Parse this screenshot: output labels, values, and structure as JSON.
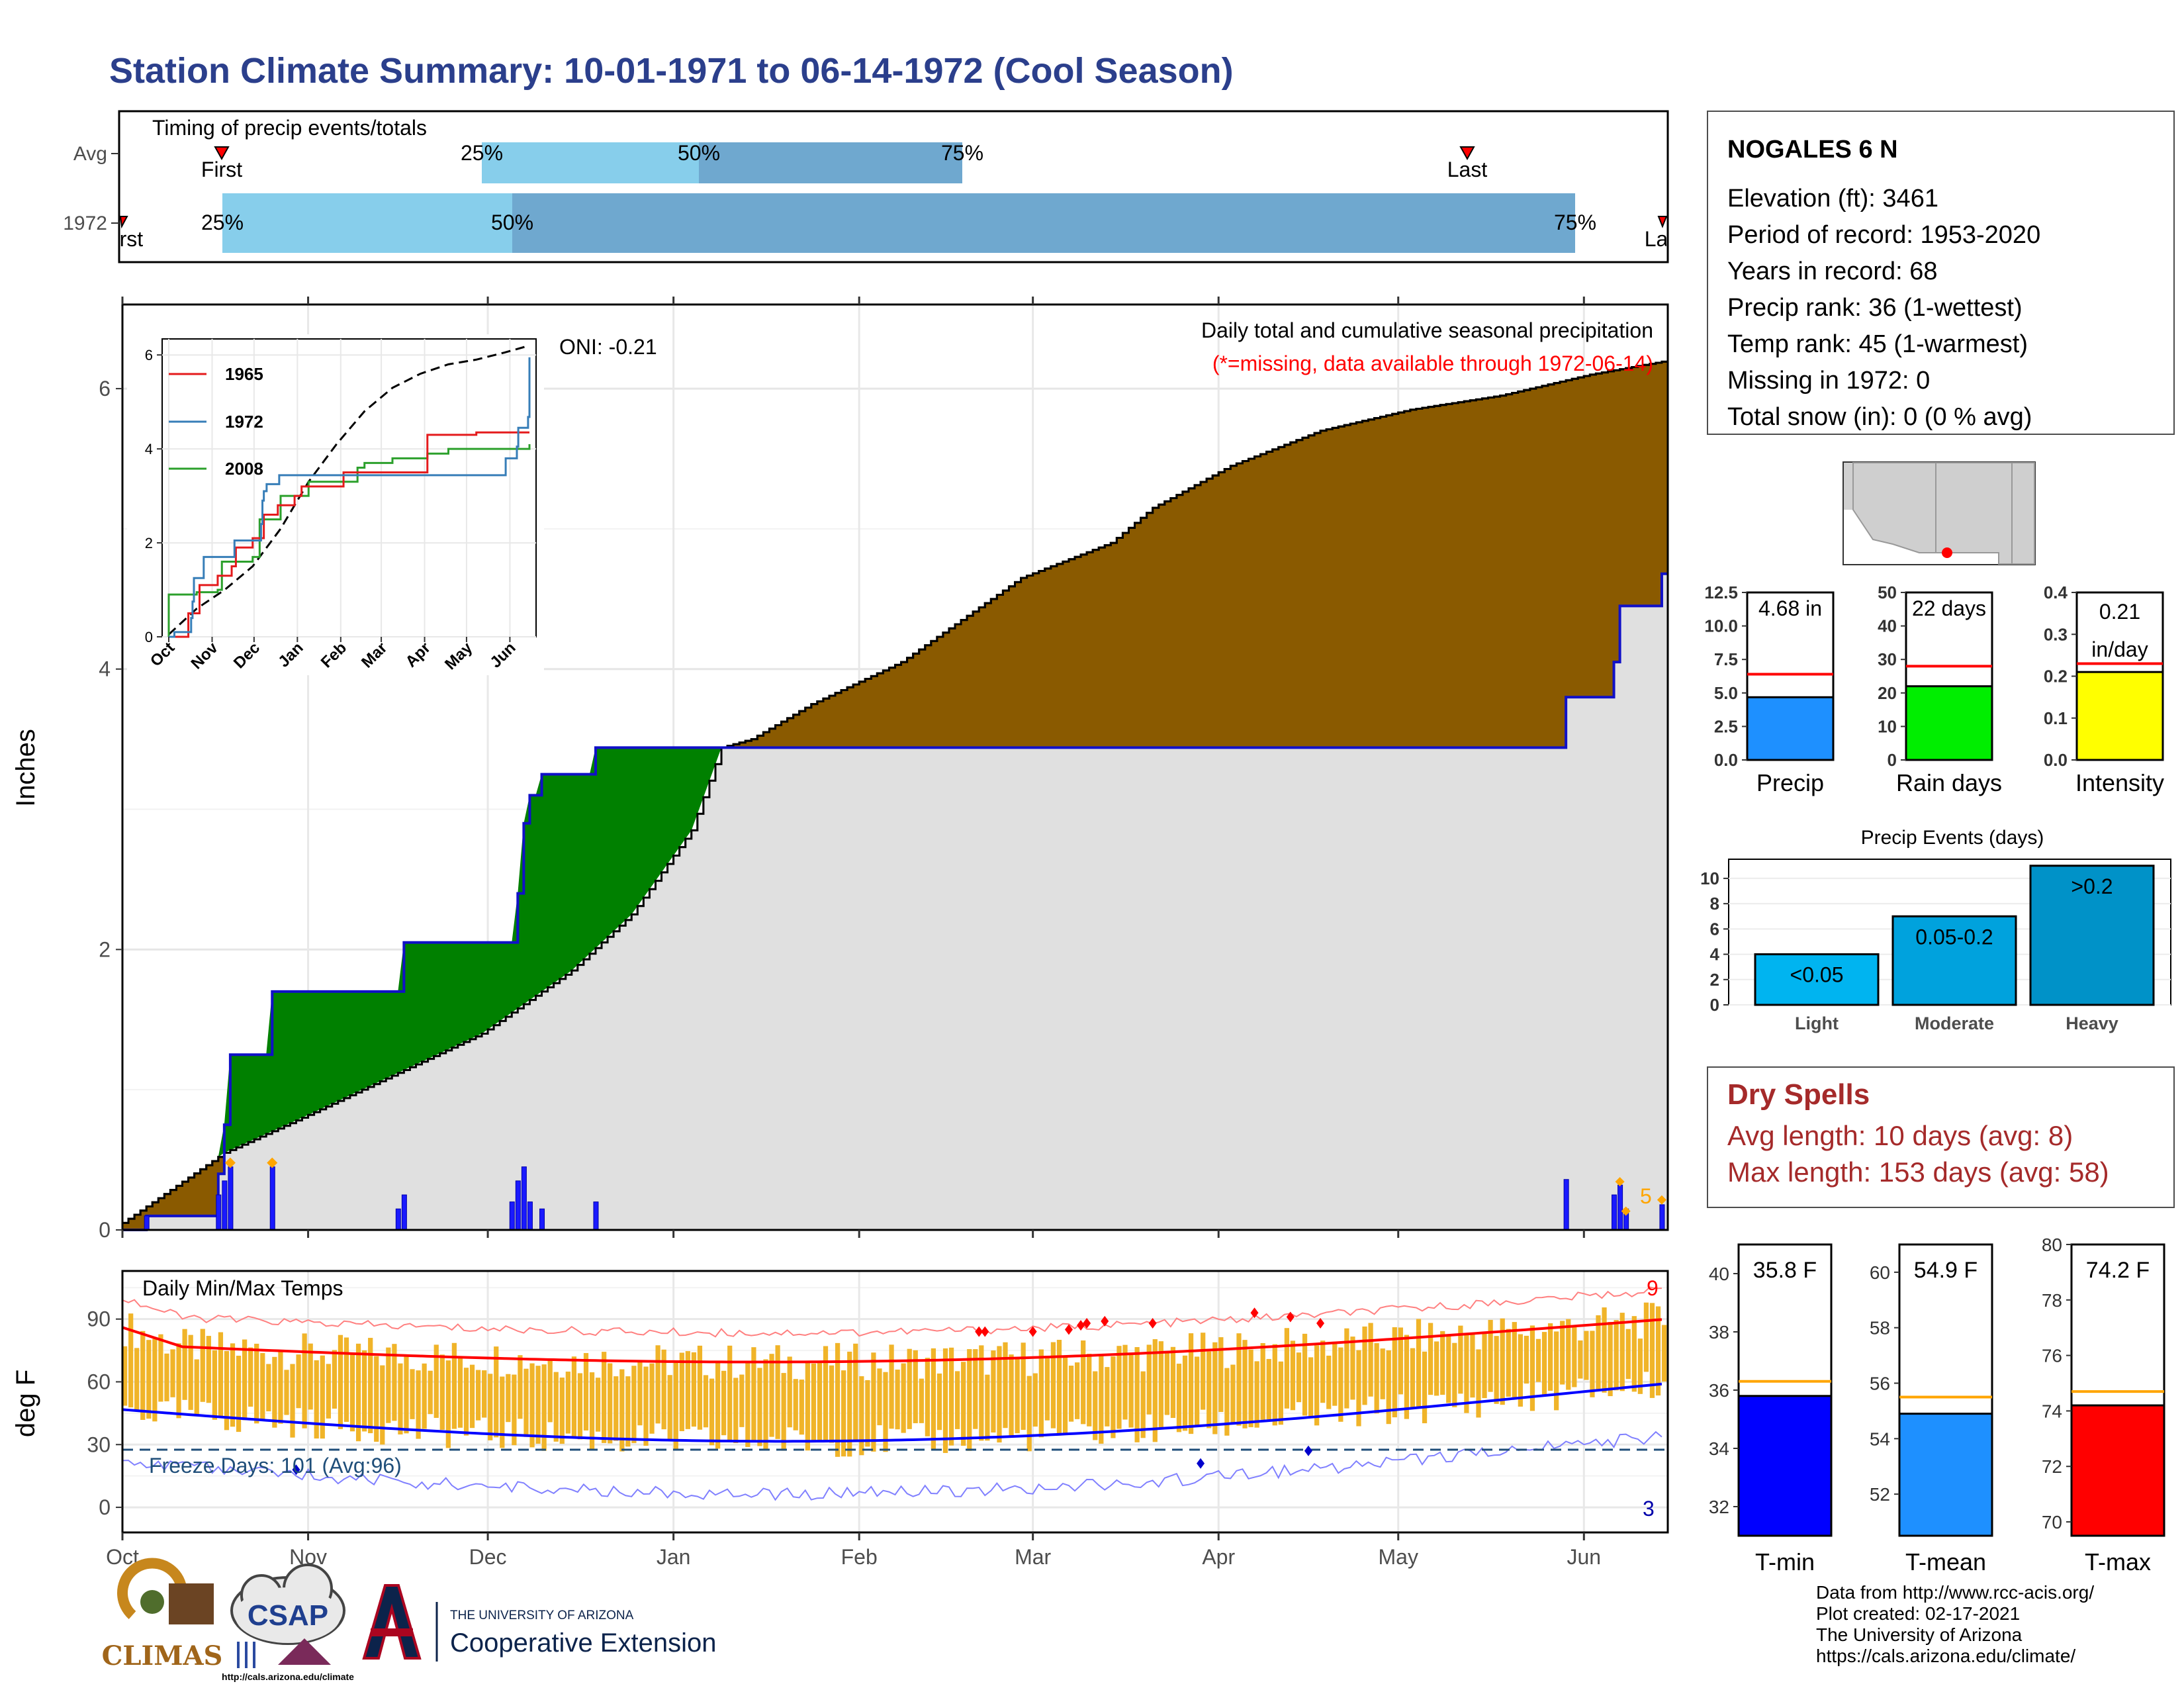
{
  "title": "Station Climate Summary: 10-01-1971 to 06-14-1972 (Cool Season)",
  "colors": {
    "title": "#2b3f8c",
    "brown": "#8a5a00",
    "green": "#008000",
    "gray_fill": "#e0e0e0",
    "blue_line": "#1010c8",
    "bar_blue": "#1a1aff",
    "orange": "#ffa500",
    "light_blue": "#87ceeb",
    "mid_blue": "#6fa8cf",
    "temp_bar": "#f0b429",
    "red": "#ff0000",
    "dry_red": "#a52a2a",
    "freeze_dash": "#1f4e79"
  },
  "timing": {
    "title": "Timing of precip events/totals",
    "rows": [
      {
        "label": "Avg",
        "first_label": "First",
        "last_label": "Last",
        "p25": "25%",
        "p50": "50%",
        "p75": "75%"
      },
      {
        "label": "1972",
        "first_label": "First",
        "last_label": "Last",
        "p25": "25%",
        "p50": "50%",
        "p75": "75%"
      }
    ]
  },
  "station": {
    "name": "NOGALES 6 N",
    "lines": [
      "Elevation (ft): 3461",
      "Period of record: 1953-2020",
      "Years in record: 68",
      "Precip rank: 36 (1-wettest)",
      "Temp rank: 45 (1-warmest)",
      "Missing in 1972: 0",
      "Total snow (in): 0 (0 % avg)"
    ]
  },
  "precip_panel": {
    "ylabel": "Inches",
    "title": "Daily total and cumulative seasonal precipitation",
    "subtitle": "(*=missing, data available through 1972-06-14)",
    "oni": "ONI: -0.21",
    "corner_count": "5",
    "months": [
      "Oct",
      "Nov",
      "Dec",
      "Jan",
      "Feb",
      "Mar",
      "Apr",
      "May",
      "Jun"
    ],
    "yticks": [
      "0",
      "2",
      "4",
      "6"
    ]
  },
  "inset": {
    "legend": [
      "1965",
      "1972",
      "2008"
    ],
    "yticks": [
      "0",
      "2",
      "4",
      "6"
    ],
    "months": [
      "Oct",
      "Nov",
      "Dec",
      "Jan",
      "Feb",
      "Mar",
      "Apr",
      "May",
      "Jun"
    ]
  },
  "summary_bars": [
    {
      "label": "Precip",
      "value_text": "4.68 in",
      "value": 4.68,
      "avg": 6.4,
      "max": 12.5,
      "yticks": [
        "0.0",
        "2.5",
        "5.0",
        "7.5",
        "10.0",
        "12.5"
      ],
      "color": "#1e90ff"
    },
    {
      "label": "Rain days",
      "value_text": "22 days",
      "value": 22,
      "avg": 28,
      "max": 50,
      "yticks": [
        "0",
        "10",
        "20",
        "30",
        "40",
        "50"
      ],
      "color": "#00ee00"
    },
    {
      "label": "Intensity",
      "value_text": "0.21 in/day",
      "value_line1": "0.21",
      "value_line2": "in/day",
      "value": 0.21,
      "avg": 0.23,
      "max": 0.4,
      "yticks": [
        "0.0",
        "0.1",
        "0.2",
        "0.3",
        "0.4"
      ],
      "color": "#ffff00"
    }
  ],
  "events": {
    "title": "Precip Events (days)",
    "yticks": [
      "0",
      "2",
      "4",
      "6",
      "8",
      "10"
    ],
    "bars": [
      {
        "cat": "Light",
        "label": "<0.05",
        "value": 4,
        "color": "#00b4f0"
      },
      {
        "cat": "Moderate",
        "label": "0.05-0.2",
        "value": 7,
        "color": "#00a2dd"
      },
      {
        "cat": "Heavy",
        "label": ">0.2",
        "value": 11,
        "color": "#0092c8"
      }
    ]
  },
  "dry_spells": {
    "title": "Dry Spells",
    "avg_line": "Avg length: 10 days (avg: 8)",
    "max_line": "Max length: 153 days (avg: 58)"
  },
  "temp_panel": {
    "ylabel": "deg F",
    "title": "Daily Min/Max Temps",
    "freeze": "Freeze Days: 101 (Avg:96)",
    "count_hot": "9",
    "count_cold": "3",
    "yticks": [
      "0",
      "30",
      "60",
      "90"
    ]
  },
  "temp_bars": [
    {
      "label": "T-min",
      "value_text": "35.8 F",
      "value": 35.8,
      "avg": 36.3,
      "min": 31,
      "max": 41,
      "yticks": [
        "32",
        "34",
        "36",
        "38",
        "40"
      ],
      "color": "#0000ff"
    },
    {
      "label": "T-mean",
      "value_text": "54.9 F",
      "value": 54.9,
      "avg": 55.5,
      "min": 50.5,
      "max": 61,
      "yticks": [
        "52",
        "54",
        "56",
        "58",
        "60"
      ],
      "color": "#1e90ff"
    },
    {
      "label": "T-max",
      "value_text": "74.2 F",
      "value": 74.2,
      "avg": 74.7,
      "min": 69.5,
      "max": 80,
      "yticks": [
        "70",
        "72",
        "74",
        "76",
        "78",
        "80"
      ],
      "color": "#ff0000"
    }
  ],
  "footer": {
    "credits": [
      "Data from http://www.rcc-acis.org/",
      "Plot created: 02-17-2021",
      "The University of Arizona",
      "https://cals.arizona.edu/climate/"
    ],
    "climas": "CLIMAS",
    "csap": "CSAP",
    "csap_url": "http://cals.arizona.edu/climate",
    "ua_small": "THE UNIVERSITY OF ARIZONA",
    "ua_big": "Cooperative Extension"
  },
  "chart_data": {
    "type": "area",
    "title": "Daily total and cumulative seasonal precipitation",
    "ylabel": "Inches",
    "ylim": [
      0,
      6.6
    ],
    "x": [
      "1971-10-01",
      "1971-10-18",
      "1971-10-28",
      "1971-11-18",
      "1971-12-08",
      "1971-12-15",
      "1971-12-26",
      "1972-01-09",
      "1972-03-15",
      "1972-05-30",
      "1972-06-07",
      "1972-06-14"
    ],
    "series": [
      {
        "name": "1972",
        "values": [
          0.0,
          0.4,
          1.7,
          2.05,
          2.5,
          3.25,
          3.44,
          3.44,
          3.44,
          3.8,
          4.45,
          4.68
        ]
      },
      {
        "values": [
          0.05,
          0.55,
          0.95,
          1.4,
          1.8,
          2.25,
          2.95,
          3.44,
          4.9,
          5.8,
          6.1,
          6.2
        ]
      }
    ]
  }
}
